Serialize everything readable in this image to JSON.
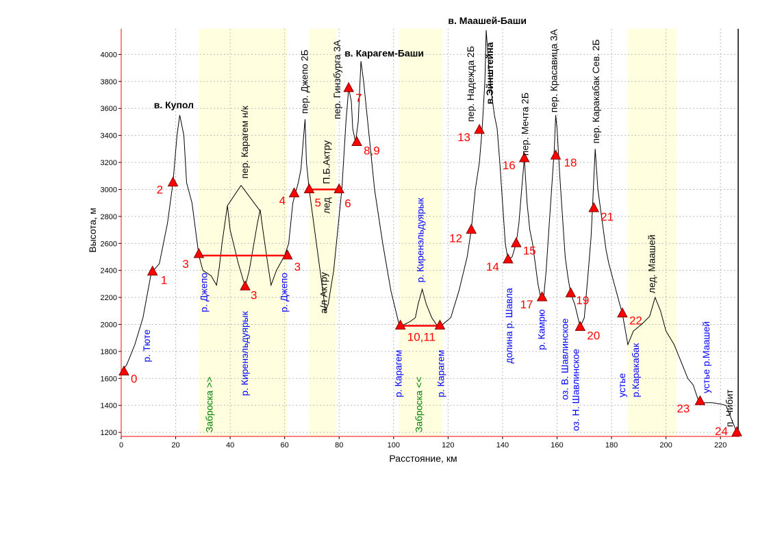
{
  "chart_data": {
    "type": "line",
    "xlabel": "Расстояние, км",
    "ylabel": "Высота, м",
    "xlim": [
      0,
      227
    ],
    "ylim": [
      1170,
      4190
    ],
    "xticks": [
      0,
      20,
      40,
      60,
      80,
      100,
      120,
      140,
      160,
      180,
      200,
      220
    ],
    "yticks": [
      1200,
      1400,
      1600,
      1800,
      2000,
      2200,
      2400,
      2600,
      2800,
      3000,
      3200,
      3400,
      3600,
      3800,
      4000
    ],
    "grid": true,
    "colors": {
      "profile": "#000000",
      "marker": "#ff0000",
      "number": "#ff0000",
      "river": "#0000ff",
      "zabroska": "#008000",
      "band": "#ffffe0",
      "grid": "#bbbbbb",
      "axis": "#ff0000"
    },
    "bands": [
      {
        "x0": 28.5,
        "x1": 61
      },
      {
        "x0": 69,
        "x1": 79
      },
      {
        "x0": 102,
        "x1": 118
      },
      {
        "x0": 186,
        "x1": 204
      }
    ],
    "profile": [
      [
        0,
        1650
      ],
      [
        2,
        1700
      ],
      [
        5,
        1850
      ],
      [
        8,
        2050
      ],
      [
        11,
        2380
      ],
      [
        14,
        2450
      ],
      [
        17,
        2750
      ],
      [
        19,
        3050
      ],
      [
        20.5,
        3400
      ],
      [
        21.5,
        3550
      ],
      [
        23,
        3400
      ],
      [
        24,
        3050
      ],
      [
        26,
        2900
      ],
      [
        28.5,
        2510
      ],
      [
        30,
        2400
      ],
      [
        33,
        2360
      ],
      [
        35,
        2290
      ],
      [
        36,
        2420
      ],
      [
        37,
        2600
      ],
      [
        39,
        2880
      ],
      [
        40,
        2700
      ],
      [
        43,
        2450
      ],
      [
        45.5,
        2280
      ],
      [
        47,
        2400
      ],
      [
        50,
        2750
      ],
      [
        51,
        2850
      ],
      [
        52,
        2700
      ],
      [
        54,
        2420
      ],
      [
        55,
        2290
      ],
      [
        57,
        2400
      ],
      [
        60,
        2510
      ],
      [
        61.5,
        2600
      ],
      [
        63,
        2900
      ],
      [
        65,
        3050
      ],
      [
        66,
        3150
      ],
      [
        67,
        3400
      ],
      [
        67.5,
        3520
      ],
      [
        68,
        3200
      ],
      [
        69,
        3000
      ],
      [
        71,
        2700
      ],
      [
        73,
        2400
      ],
      [
        75,
        2100
      ],
      [
        76,
        2150
      ],
      [
        78,
        2400
      ],
      [
        80,
        2800
      ],
      [
        81,
        3000
      ],
      [
        82.5,
        3500
      ],
      [
        83.5,
        3750
      ],
      [
        84.5,
        3650
      ],
      [
        85,
        3450
      ],
      [
        86,
        3350
      ],
      [
        87,
        3500
      ],
      [
        88,
        3950
      ],
      [
        89,
        3800
      ],
      [
        91,
        3400
      ],
      [
        93,
        3000
      ],
      [
        96,
        2600
      ],
      [
        99,
        2250
      ],
      [
        102,
        2000
      ],
      [
        103,
        1990
      ],
      [
        106,
        2020
      ],
      [
        108,
        2050
      ],
      [
        109,
        2150
      ],
      [
        110.5,
        2260
      ],
      [
        112,
        2150
      ],
      [
        114,
        2050
      ],
      [
        116,
        1990
      ],
      [
        118,
        2000
      ],
      [
        121,
        2050
      ],
      [
        124,
        2250
      ],
      [
        127,
        2500
      ],
      [
        128.5,
        2700
      ],
      [
        130,
        3000
      ],
      [
        131.5,
        3200
      ],
      [
        132.5,
        3450
      ],
      [
        133.5,
        3800
      ],
      [
        134,
        4180
      ],
      [
        135,
        3900
      ],
      [
        136,
        3700
      ],
      [
        137,
        3550
      ],
      [
        138,
        3450
      ],
      [
        139,
        3200
      ],
      [
        140,
        2900
      ],
      [
        141,
        2600
      ],
      [
        142,
        2480
      ],
      [
        143.5,
        2500
      ],
      [
        145,
        2600
      ],
      [
        146,
        2750
      ],
      [
        147,
        3000
      ],
      [
        148,
        3230
      ],
      [
        149,
        2900
      ],
      [
        150,
        2700
      ],
      [
        151,
        2600
      ],
      [
        152,
        2450
      ],
      [
        153,
        2300
      ],
      [
        154,
        2200
      ],
      [
        155,
        2180
      ],
      [
        156,
        2400
      ],
      [
        157,
        2700
      ],
      [
        158,
        3000
      ],
      [
        159,
        3300
      ],
      [
        159.5,
        3550
      ],
      [
        160,
        3450
      ],
      [
        161,
        3100
      ],
      [
        162,
        2800
      ],
      [
        163,
        2500
      ],
      [
        164,
        2350
      ],
      [
        165,
        2230
      ],
      [
        166.5,
        2150
      ],
      [
        168.5,
        1980
      ],
      [
        170,
        2050
      ],
      [
        171.5,
        2400
      ],
      [
        172.5,
        2650
      ],
      [
        173,
        2860
      ],
      [
        174,
        3300
      ],
      [
        175,
        3000
      ],
      [
        176,
        2850
      ],
      [
        177,
        2700
      ],
      [
        178,
        2550
      ],
      [
        179,
        2450
      ],
      [
        181,
        2300
      ],
      [
        183,
        2150
      ],
      [
        184,
        2080
      ],
      [
        186,
        1850
      ],
      [
        188,
        1950
      ],
      [
        191,
        2000
      ],
      [
        194,
        2060
      ],
      [
        196,
        2200
      ],
      [
        198,
        2100
      ],
      [
        200,
        1950
      ],
      [
        203,
        1850
      ],
      [
        206,
        1700
      ],
      [
        208,
        1600
      ],
      [
        210,
        1550
      ],
      [
        212,
        1430
      ],
      [
        214,
        1420
      ],
      [
        217,
        1420
      ],
      [
        220,
        1410
      ],
      [
        222,
        1400
      ],
      [
        223,
        1350
      ],
      [
        224,
        1300
      ],
      [
        226,
        1200
      ]
    ],
    "points": [
      {
        "x": 1,
        "y": 1650,
        "label": "0",
        "dx": 10,
        "dy": 16
      },
      {
        "x": 11.5,
        "y": 2390,
        "label": "1",
        "dx": 12,
        "dy": 18
      },
      {
        "x": 19,
        "y": 3050,
        "label": "2",
        "dx": -24,
        "dy": 16
      },
      {
        "x": 28.5,
        "y": 2520,
        "label": "3",
        "dx": -24,
        "dy": 20
      },
      {
        "x": 45.5,
        "y": 2280,
        "label": "3",
        "dx": 8,
        "dy": 18
      },
      {
        "x": 61,
        "y": 2510,
        "label": "3",
        "dx": 10,
        "dy": 22
      },
      {
        "x": 63.5,
        "y": 2970,
        "label": "4",
        "dx": -22,
        "dy": 16
      },
      {
        "x": 69,
        "y": 3000,
        "label": "5",
        "dx": 8,
        "dy": 25
      },
      {
        "x": 80,
        "y": 3000,
        "label": "6",
        "dx": 8,
        "dy": 26
      },
      {
        "x": 83.5,
        "y": 3750,
        "label": "7",
        "dx": 10,
        "dy": 20
      },
      {
        "x": 86.5,
        "y": 3350,
        "label": "8,9",
        "dx": 10,
        "dy": 18
      },
      {
        "x": 102.5,
        "y": 1990,
        "label": "10,11",
        "dx": 10,
        "dy": 22
      },
      {
        "x": 117,
        "y": 1990,
        "label": "",
        "dx": 0,
        "dy": 0
      },
      {
        "x": 128.5,
        "y": 2700,
        "label": "12",
        "dx": -32,
        "dy": 18
      },
      {
        "x": 131.5,
        "y": 3440,
        "label": "13",
        "dx": -32,
        "dy": 16
      },
      {
        "x": 142,
        "y": 2480,
        "label": "14",
        "dx": -32,
        "dy": 16
      },
      {
        "x": 145,
        "y": 2600,
        "label": "15",
        "dx": 10,
        "dy": 16
      },
      {
        "x": 148,
        "y": 3230,
        "label": "16",
        "dx": -32,
        "dy": 16
      },
      {
        "x": 154.5,
        "y": 2200,
        "label": "17",
        "dx": -32,
        "dy": 16
      },
      {
        "x": 159.5,
        "y": 3250,
        "label": "18",
        "dx": 12,
        "dy": 16
      },
      {
        "x": 165,
        "y": 2230,
        "label": "19",
        "dx": 8,
        "dy": 16
      },
      {
        "x": 168.5,
        "y": 1980,
        "label": "20",
        "dx": 10,
        "dy": 18
      },
      {
        "x": 173.5,
        "y": 2860,
        "label": "21",
        "dx": 10,
        "dy": 18
      },
      {
        "x": 184,
        "y": 2080,
        "label": "22",
        "dx": 10,
        "dy": 16
      },
      {
        "x": 212.5,
        "y": 1430,
        "label": "23",
        "dx": -34,
        "dy": 16
      },
      {
        "x": 226,
        "y": 1200,
        "label": "24",
        "dx": -32,
        "dy": 4
      }
    ],
    "segments": [
      {
        "x0": 28.5,
        "x1": 61,
        "y": 2510
      },
      {
        "x0": 69,
        "x1": 80,
        "y": 3000
      },
      {
        "x0": 102.5,
        "x1": 117,
        "y": 1990
      }
    ],
    "leaders": [
      {
        "from": [
          39,
          2880
        ],
        "to": [
          44,
          3030
        ]
      },
      {
        "from": [
          44,
          3030
        ],
        "to": [
          51,
          2840
        ]
      }
    ],
    "vlines": [
      {
        "x": 226.5,
        "y0": 1185,
        "y1": 4190
      }
    ],
    "annotations_h": [
      {
        "text": "в. Купол",
        "x": 12,
        "y": 3600,
        "bold": true
      },
      {
        "text": "в. Карагем-Баши",
        "x": 82,
        "y": 3985,
        "bold": true
      },
      {
        "text": "в. Маашей-Баши",
        "x": 120,
        "y": 4225,
        "bold": true
      }
    ],
    "annotations_v": [
      {
        "text": "пер. Карагем н/к",
        "x": 46.5,
        "y": 3080,
        "color": "black",
        "bold": false
      },
      {
        "text": "пер. Джепо 2Б",
        "x": 68.5,
        "y": 3560,
        "color": "black",
        "bold": false
      },
      {
        "text": "пер. Гинзбурга 3А",
        "x": 80.5,
        "y": 3520,
        "color": "black",
        "bold": false
      },
      {
        "text": "П.Б.Актру",
        "x": 76.5,
        "y": 3040,
        "color": "black",
        "bold": false
      },
      {
        "text": "лед",
        "x": 76.5,
        "y": 2820,
        "color": "black",
        "bold": false
      },
      {
        "text": "а/л Актру",
        "x": 75.5,
        "y": 2080,
        "color": "black",
        "bold": false
      },
      {
        "text": "пер. Надежда 2Б",
        "x": 129.5,
        "y": 3500,
        "color": "black",
        "bold": false
      },
      {
        "text": "в.Эйнштейна",
        "x": 136.5,
        "y": 3630,
        "color": "black",
        "bold": true
      },
      {
        "text": "пер. Мечта 2Б",
        "x": 149.5,
        "y": 3250,
        "color": "black",
        "bold": false
      },
      {
        "text": "пер. Красавица 3А",
        "x": 160,
        "y": 3570,
        "color": "black",
        "bold": false
      },
      {
        "text": "пер. Каракабак Сев. 2Б",
        "x": 175.5,
        "y": 3340,
        "color": "black",
        "bold": false
      },
      {
        "text": "лед. Маашей",
        "x": 196,
        "y": 2230,
        "color": "black",
        "bold": false
      },
      {
        "text": "п. Чибит",
        "x": 224.5,
        "y": 1240,
        "color": "black",
        "bold": false
      },
      {
        "text": "р. Тюте",
        "x": 10.5,
        "y": 1720,
        "color": "blue",
        "bold": false
      },
      {
        "text": "р. Джепо",
        "x": 31.5,
        "y": 2090,
        "color": "blue",
        "bold": false
      },
      {
        "text": "р. Киренэльдуярык",
        "x": 46.5,
        "y": 1470,
        "color": "blue",
        "bold": false
      },
      {
        "text": "р. Джепо",
        "x": 61,
        "y": 2090,
        "color": "blue",
        "bold": false
      },
      {
        "text": "р. Карагем",
        "x": 103,
        "y": 1460,
        "color": "blue",
        "bold": false
      },
      {
        "text": "р. Киренэльдуярык",
        "x": 111,
        "y": 2310,
        "color": "blue",
        "bold": false
      },
      {
        "text": "р. Карагем",
        "x": 118.5,
        "y": 1460,
        "color": "blue",
        "bold": false
      },
      {
        "text": "долина р. Шавла",
        "x": 143.5,
        "y": 1710,
        "color": "blue",
        "bold": false
      },
      {
        "text": "р. Камрю",
        "x": 155.5,
        "y": 1810,
        "color": "blue",
        "bold": false
      },
      {
        "text": "оз. В. Шавлинское",
        "x": 164,
        "y": 1440,
        "color": "blue",
        "bold": false
      },
      {
        "text": "оз. Н. Шавлинское",
        "x": 168,
        "y": 1210,
        "color": "blue",
        "bold": false
      },
      {
        "text": "устье",
        "x": 185,
        "y": 1460,
        "color": "blue",
        "bold": false
      },
      {
        "text": "р.Каракабак",
        "x": 190,
        "y": 1460,
        "color": "blue",
        "bold": false
      },
      {
        "text": "устье р.Маашей",
        "x": 216,
        "y": 1490,
        "color": "blue",
        "bold": false
      },
      {
        "text": "Заброска >>",
        "x": 33.5,
        "y": 1200,
        "color": "green",
        "bold": false
      },
      {
        "text": "Заброска <<",
        "x": 110.5,
        "y": 1200,
        "color": "green",
        "bold": false
      }
    ]
  }
}
